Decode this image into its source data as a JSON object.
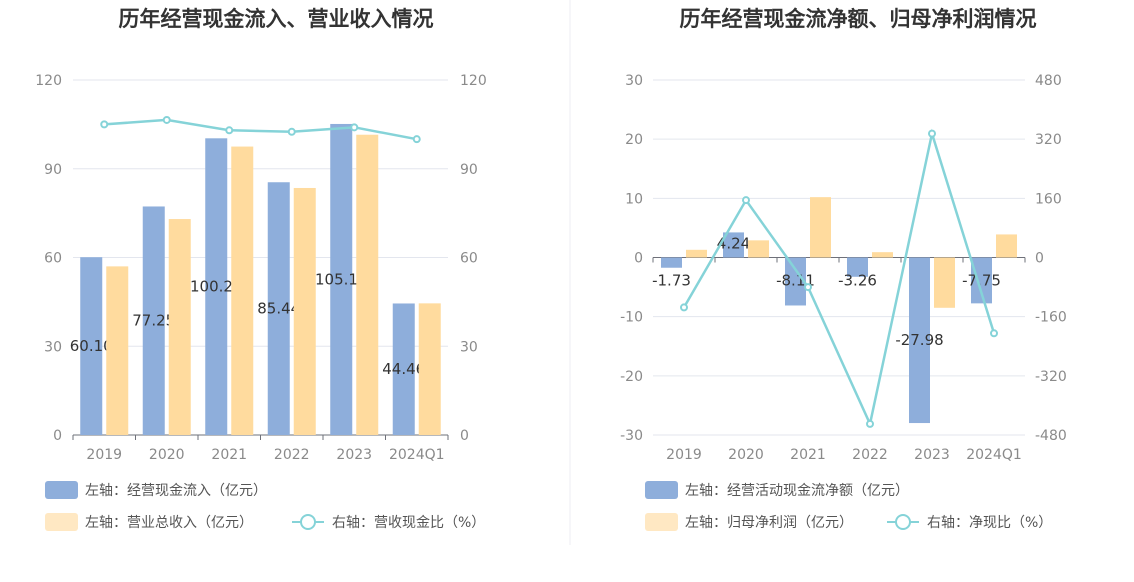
{
  "colors": {
    "blue": "#8eaedb",
    "orange": "#ffdb9e",
    "orange_legend": "#ffe8c3",
    "line": "#85d3d8",
    "grid": "#e3e6ee",
    "text": "#333333",
    "tick": "#8a8a8a"
  },
  "chart_data": [
    {
      "type": "bar",
      "title": "历年经营现金流入、营业收入情况",
      "categories": [
        "2019",
        "2020",
        "2021",
        "2022",
        "2023",
        "2024Q1"
      ],
      "ylim": [
        0,
        120
      ],
      "yticks": [
        "0",
        "30",
        "60",
        "90",
        "120"
      ],
      "ylim_right": [
        0,
        120
      ],
      "yticks_right": [
        "0",
        "30",
        "60",
        "90",
        "120"
      ],
      "grid": true,
      "legend_position": "bottom",
      "series": [
        {
          "name": "左轴：经营现金流入（亿元）",
          "kind": "bar",
          "axis": "left",
          "values": [
            60.1,
            77.25,
            100.29,
            85.44,
            105.14,
            44.46
          ],
          "labels": [
            "60.10",
            "77.25",
            "100.29",
            "85.44",
            "105.14",
            "44.46"
          ]
        },
        {
          "name": "左轴：营业总收入（亿元）",
          "kind": "bar",
          "axis": "left",
          "values": [
            57,
            73,
            97.5,
            83.5,
            101.5,
            44.5
          ]
        },
        {
          "name": "右轴：营收现金比（%）",
          "kind": "line",
          "axis": "right",
          "values": [
            105,
            106.5,
            103,
            102.5,
            104,
            100
          ]
        }
      ]
    },
    {
      "type": "bar",
      "title": "历年经营现金流净额、归母净利润情况",
      "categories": [
        "2019",
        "2020",
        "2021",
        "2022",
        "2023",
        "2024Q1"
      ],
      "ylim": [
        -30,
        30
      ],
      "yticks": [
        "-30",
        "-20",
        "-10",
        "0",
        "10",
        "20",
        "30"
      ],
      "ylim_right": [
        -480,
        480
      ],
      "yticks_right": [
        "-480",
        "-320",
        "-160",
        "0",
        "160",
        "320",
        "480"
      ],
      "grid": true,
      "legend_position": "bottom",
      "series": [
        {
          "name": "左轴：经营活动现金流净额（亿元）",
          "kind": "bar",
          "axis": "left",
          "values": [
            -1.73,
            4.24,
            -8.11,
            -3.26,
            -27.98,
            -7.75
          ],
          "labels": [
            "-1.73",
            "4.24",
            "-8.11",
            "-3.26",
            "-27.98",
            "-7.75"
          ]
        },
        {
          "name": "左轴：归母净利润（亿元）",
          "kind": "bar",
          "axis": "left",
          "values": [
            1.3,
            2.9,
            10.2,
            0.9,
            -8.5,
            3.9
          ]
        },
        {
          "name": "右轴：净现比（%）",
          "kind": "line",
          "axis": "right",
          "values": [
            -135,
            155,
            -80,
            -450,
            335,
            -205
          ]
        }
      ]
    }
  ]
}
